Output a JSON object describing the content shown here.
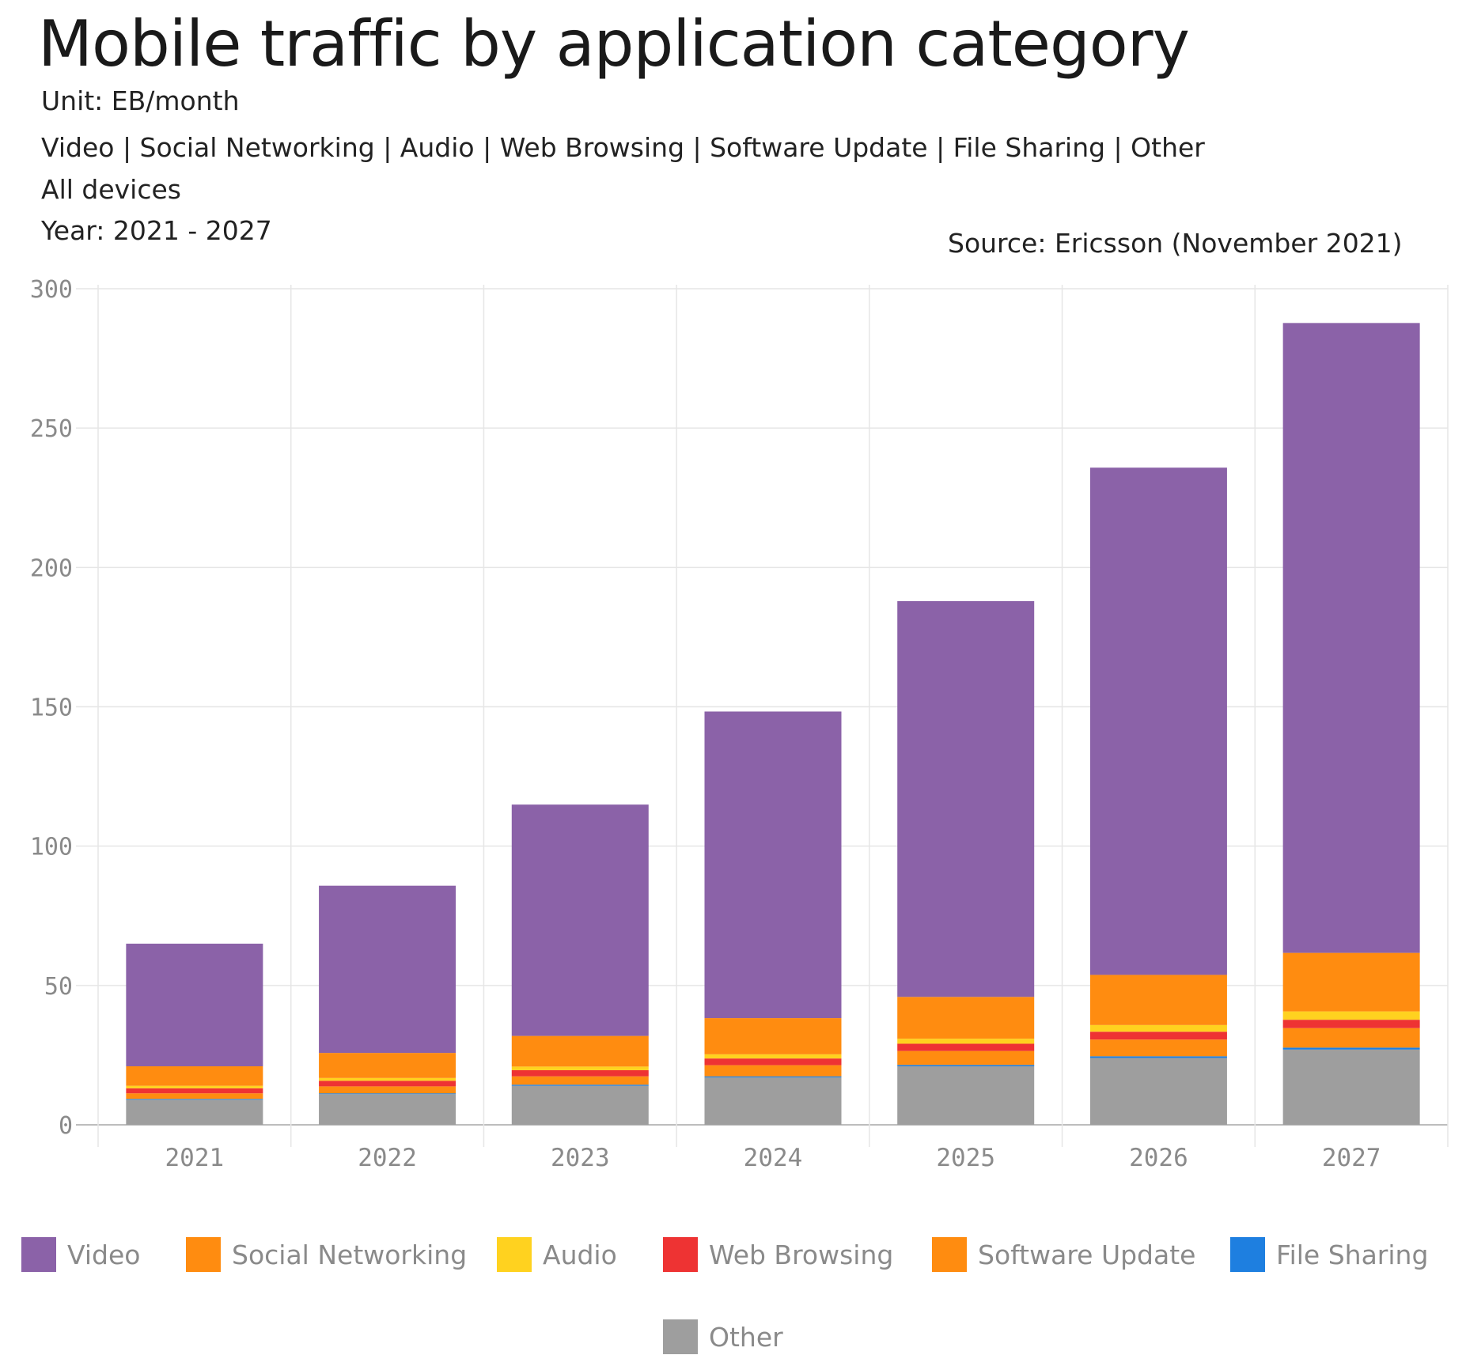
{
  "header": {
    "title": "Mobile traffic by application category",
    "unit": "Unit: EB/month",
    "categories_line": "Video | Social Networking | Audio | Web Browsing | Software Update | File Sharing | Other",
    "devices": "All devices",
    "years": "Year: 2021 - 2027",
    "source": "Source: Ericsson (November 2021)"
  },
  "chart_data": {
    "type": "bar",
    "stacked": true,
    "title": "Mobile traffic by application category",
    "categories": [
      "2021",
      "2022",
      "2023",
      "2024",
      "2025",
      "2026",
      "2027"
    ],
    "ylim": [
      0,
      300
    ],
    "yticks": [
      0,
      50,
      100,
      150,
      200,
      250,
      300
    ],
    "grid": true,
    "legend_position": "bottom",
    "series": [
      {
        "name": "Other",
        "color": "#9e9e9e",
        "values": [
          9,
          11,
          14,
          17,
          21,
          24,
          27
        ]
      },
      {
        "name": "File Sharing",
        "color": "#1e7fe0",
        "values": [
          0.3,
          0.3,
          0.4,
          0.4,
          0.5,
          0.6,
          0.7
        ]
      },
      {
        "name": "Software Update",
        "color": "#ff8c10",
        "values": [
          2,
          2.5,
          3,
          4,
          5,
          6,
          7
        ]
      },
      {
        "name": "Web Browsing",
        "color": "#ee3333",
        "values": [
          1.8,
          2,
          2.2,
          2.4,
          2.6,
          2.8,
          3
        ]
      },
      {
        "name": "Audio",
        "color": "#ffd21f",
        "values": [
          0.9,
          1,
          1.3,
          1.5,
          1.8,
          2.4,
          3
        ]
      },
      {
        "name": "Social Networking",
        "color": "#ff8c10",
        "values": [
          7,
          9,
          11,
          13,
          15,
          18,
          21
        ]
      },
      {
        "name": "Video",
        "color": "#8b62a8",
        "values": [
          44,
          60,
          83,
          110,
          142,
          182,
          226
        ]
      }
    ],
    "legend_order": [
      "Video",
      "Social Networking",
      "Audio",
      "Web Browsing",
      "Software Update",
      "File Sharing",
      "Other"
    ]
  }
}
